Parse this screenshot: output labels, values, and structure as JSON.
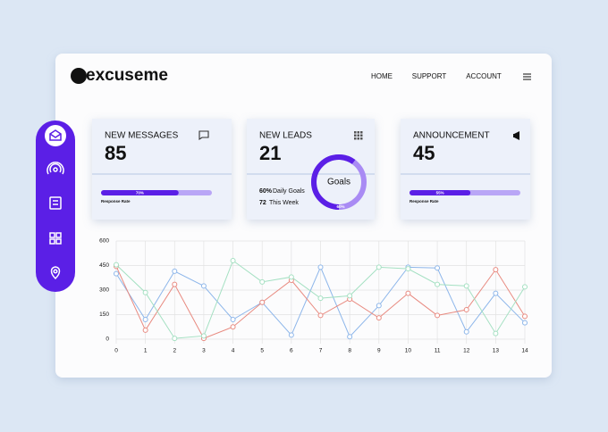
{
  "header": {
    "logo": "excuseme",
    "nav": [
      "HOME",
      "SUPPORT",
      "ACCOUNT"
    ]
  },
  "cards": [
    {
      "title": "NEW MESSAGES",
      "value": "85",
      "progress": 70,
      "progress_label": "70%",
      "caption": "Response Rate"
    },
    {
      "title": "NEW LEADS",
      "value": "21",
      "goal_percent": 60,
      "goal_label": "60%",
      "goal_text": "Daily Goals",
      "week_value": "72",
      "week_text": "This Week",
      "donut_label": "Goals"
    },
    {
      "title": "ANNOUNCEMENT",
      "value": "45",
      "progress": 55,
      "progress_label": "55%",
      "caption": "Response Rate"
    }
  ],
  "chart_data": {
    "type": "line",
    "x": [
      0,
      1,
      2,
      3,
      4,
      5,
      6,
      7,
      8,
      9,
      10,
      11,
      12,
      13,
      14
    ],
    "xlim": [
      0,
      14
    ],
    "xticks": [
      0,
      1,
      2,
      3,
      4,
      5,
      6,
      7,
      8,
      9,
      10,
      11,
      12,
      13,
      14
    ],
    "ylim": [
      0,
      600
    ],
    "yticks": [
      0,
      150,
      300,
      450,
      600
    ],
    "grid": true,
    "series": [
      {
        "color": "#8db6ea",
        "values": [
          400,
          120,
          415,
          325,
          120,
          225,
          25,
          440,
          15,
          205,
          440,
          435,
          45,
          280,
          100
        ]
      },
      {
        "color": "#e88a80",
        "values": [
          445,
          55,
          335,
          5,
          75,
          225,
          360,
          145,
          245,
          130,
          280,
          145,
          180,
          425,
          140
        ]
      },
      {
        "color": "#a4e0c2",
        "values": [
          455,
          285,
          5,
          20,
          480,
          350,
          380,
          250,
          265,
          440,
          430,
          335,
          325,
          35,
          320
        ]
      }
    ]
  }
}
